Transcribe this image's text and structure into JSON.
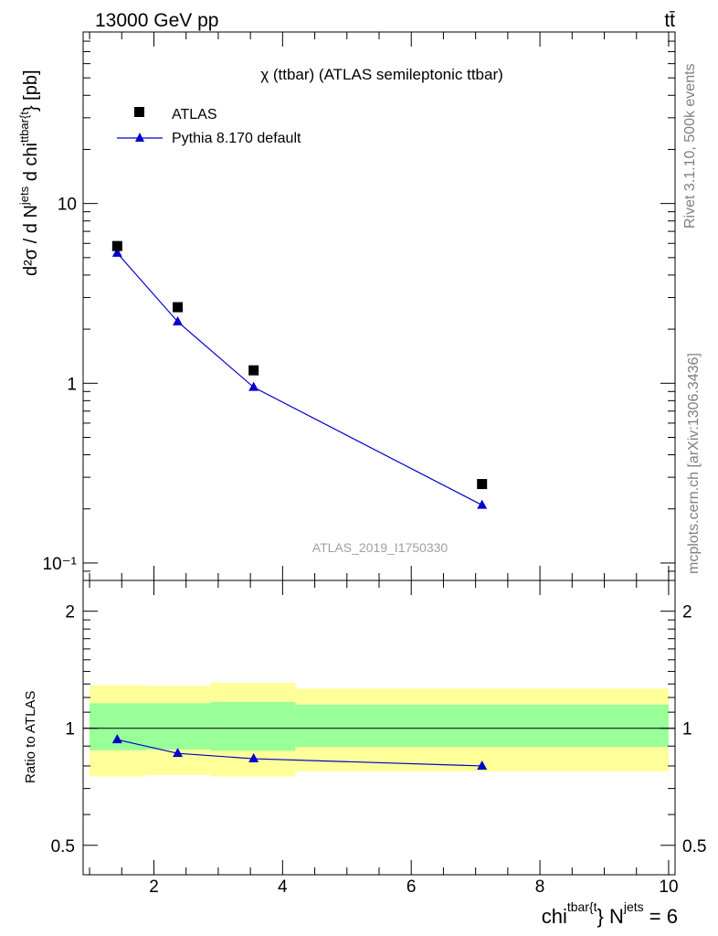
{
  "header": {
    "energy_label": "13000 GeV pp",
    "process_label": "tt̄"
  },
  "side_text": {
    "rivet": "Rivet 3.1.10,  500k events",
    "mcplots": "mcplots.cern.ch [arXiv:1306.3436]"
  },
  "chart_data": [
    {
      "type": "scatter",
      "title": "χ (ttbar) (ATLAS semileptonic ttbar)",
      "watermark": "ATLAS_2019_I1750330",
      "ylabel_parts": {
        "prefix": "d²σ /  d N",
        "sup1": "jets",
        "mid": " d chi",
        "sup2": "ttbar{t",
        "suffix": "} [pb]"
      },
      "yscale": "log",
      "xlim": [
        0.9,
        10.1
      ],
      "ylim": [
        0.08,
        90
      ],
      "ytick_labels": [
        {
          "value": 10,
          "label": "10"
        },
        {
          "value": 1,
          "label": "1"
        },
        {
          "value": 0.1,
          "label": "10⁻¹"
        }
      ],
      "legend_position": "top-left",
      "series": [
        {
          "name": "ATLAS",
          "marker": "square",
          "color": "#000000",
          "x": [
            1.43,
            2.37,
            3.55,
            7.1
          ],
          "y": [
            5.8,
            2.65,
            1.18,
            0.275
          ]
        },
        {
          "name": "Pythia 8.170 default",
          "marker": "triangle",
          "color": "#0000cc",
          "x": [
            1.43,
            2.37,
            3.55,
            7.1
          ],
          "y": [
            5.3,
            2.2,
            0.95,
            0.21
          ]
        }
      ]
    },
    {
      "type": "line",
      "ylabel": "Ratio to ATLAS",
      "xlabel_parts": {
        "base": "chi",
        "sup1": "tbar{t",
        "mid": "} N",
        "sup2": "jets",
        "suffix": " = 6"
      },
      "yscale": "log",
      "xlim": [
        0.9,
        10.1
      ],
      "ylim": [
        0.42,
        2.4
      ],
      "xtick_labels": [
        {
          "value": 2,
          "label": "2"
        },
        {
          "value": 4,
          "label": "4"
        },
        {
          "value": 6,
          "label": "6"
        },
        {
          "value": 8,
          "label": "8"
        },
        {
          "value": 10,
          "label": "10"
        }
      ],
      "ytick_labels": [
        {
          "value": 2,
          "label": "2"
        },
        {
          "value": 1,
          "label": "1"
        },
        {
          "value": 0.5,
          "label": "0.5"
        }
      ],
      "bands": [
        {
          "x0": 1.0,
          "x1": 1.88,
          "yellow": [
            0.752,
            1.29
          ],
          "green": [
            0.878,
            1.16
          ]
        },
        {
          "x0": 1.88,
          "x1": 2.88,
          "yellow": [
            0.758,
            1.285
          ],
          "green": [
            0.882,
            1.16
          ]
        },
        {
          "x0": 2.88,
          "x1": 4.2,
          "yellow": [
            0.752,
            1.31
          ],
          "green": [
            0.875,
            1.168
          ]
        },
        {
          "x0": 4.2,
          "x1": 10.0,
          "yellow": [
            0.775,
            1.265
          ],
          "green": [
            0.895,
            1.15
          ]
        }
      ],
      "series": [
        {
          "name": "Pythia 8.170 default",
          "color": "#0000cc",
          "x": [
            1.43,
            2.37,
            3.55,
            7.1
          ],
          "y": [
            0.935,
            0.862,
            0.835,
            0.8
          ],
          "yerr": [
            0.008,
            0.01,
            0.014,
            0.017
          ]
        }
      ]
    }
  ]
}
